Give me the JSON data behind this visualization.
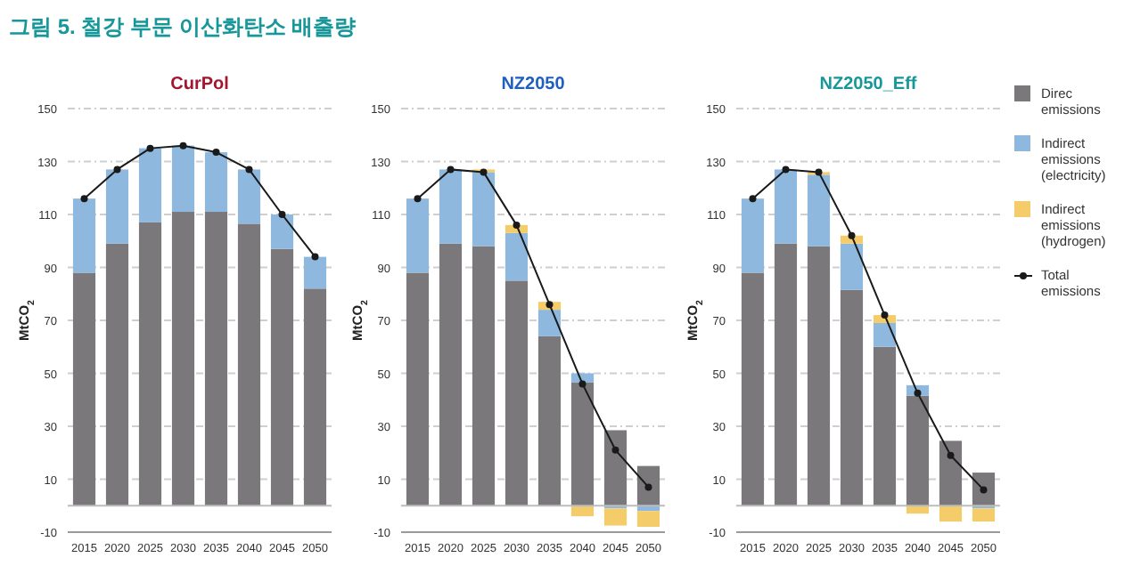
{
  "chart_data": [
    {
      "type": "bar",
      "title": "CurPol",
      "annotations": [
        "그림 5. 철강 부문 이산화탄소 배출량"
      ],
      "ylabel": "MtCO$_{2}$",
      "stacked": true,
      "grid": "y",
      "legend": false,
      "categories": [
        "2015",
        "2020",
        "2025",
        "2030",
        "2035",
        "2040",
        "2045",
        "2050"
      ],
      "ylim": [
        -10,
        150
      ],
      "yticks": [
        -10,
        10,
        30,
        50,
        70,
        90,
        110,
        130,
        150
      ],
      "series": [
        {
          "color": "#7a787b",
          "values": [
            88,
            99,
            107,
            111,
            111,
            106.5,
            97,
            82
          ]
        },
        {
          "color": "#8fb8de",
          "values": [
            28,
            28,
            28,
            25,
            22.5,
            20.5,
            13,
            12
          ]
        },
        {
          "type": "line",
          "marker": "circle",
          "color": "#1a1a1a",
          "values": [
            116,
            127,
            135,
            136,
            133.5,
            127,
            110,
            94
          ]
        }
      ]
    },
    {
      "type": "bar",
      "title": "NZ2050",
      "ylabel": "MtCO$_{2}$",
      "stacked": true,
      "grid": "y",
      "legend": false,
      "categories": [
        "2015",
        "2020",
        "2025",
        "2030",
        "2035",
        "2040",
        "2045",
        "2050"
      ],
      "ylim": [
        -10,
        150
      ],
      "yticks": [
        -10,
        10,
        30,
        50,
        70,
        90,
        110,
        130,
        150
      ],
      "series": [
        {
          "color": "#7a787b",
          "values": [
            88,
            99,
            98,
            85,
            64,
            46.5,
            28.5,
            15
          ]
        },
        {
          "color": "#8fb8de",
          "values": [
            28,
            28,
            28,
            18,
            10,
            3.5,
            -1,
            -2
          ]
        },
        {
          "color": "#f5cc6a",
          "values": [
            0,
            0,
            1,
            3,
            3,
            -4,
            -6.5,
            -6
          ]
        },
        {
          "type": "line",
          "marker": "circle",
          "color": "#1a1a1a",
          "values": [
            116,
            127,
            126,
            106,
            76,
            46,
            21,
            7
          ]
        }
      ]
    },
    {
      "type": "bar",
      "title": "NZ2050_Eff",
      "ylabel": "MtCO$_{2}$",
      "stacked": true,
      "grid": "y",
      "legend": "right",
      "categories": [
        "2015",
        "2020",
        "2025",
        "2030",
        "2035",
        "2040",
        "2045",
        "2050"
      ],
      "ylim": [
        -10,
        150
      ],
      "yticks": [
        -10,
        10,
        30,
        50,
        70,
        90,
        110,
        130,
        150
      ],
      "series": [
        {
          "name": "Direc emissions",
          "color": "#7a787b",
          "values": [
            88,
            99,
            98,
            81.5,
            60,
            41.5,
            24.5,
            12.5
          ]
        },
        {
          "name": "Indirect emissions (electricity)",
          "color": "#8fb8de",
          "values": [
            28,
            28,
            27,
            17.5,
            9,
            4,
            0,
            -1
          ]
        },
        {
          "name": "Indirect emissions (hydrogen)",
          "color": "#f5cc6a",
          "values": [
            0,
            0,
            1,
            3,
            3,
            -3,
            -6,
            -5
          ]
        },
        {
          "name": "Total emissions",
          "type": "line",
          "marker": "circle",
          "color": "#1a1a1a",
          "values": [
            116,
            127,
            126,
            102,
            72,
            42.5,
            19,
            6
          ]
        }
      ]
    }
  ]
}
